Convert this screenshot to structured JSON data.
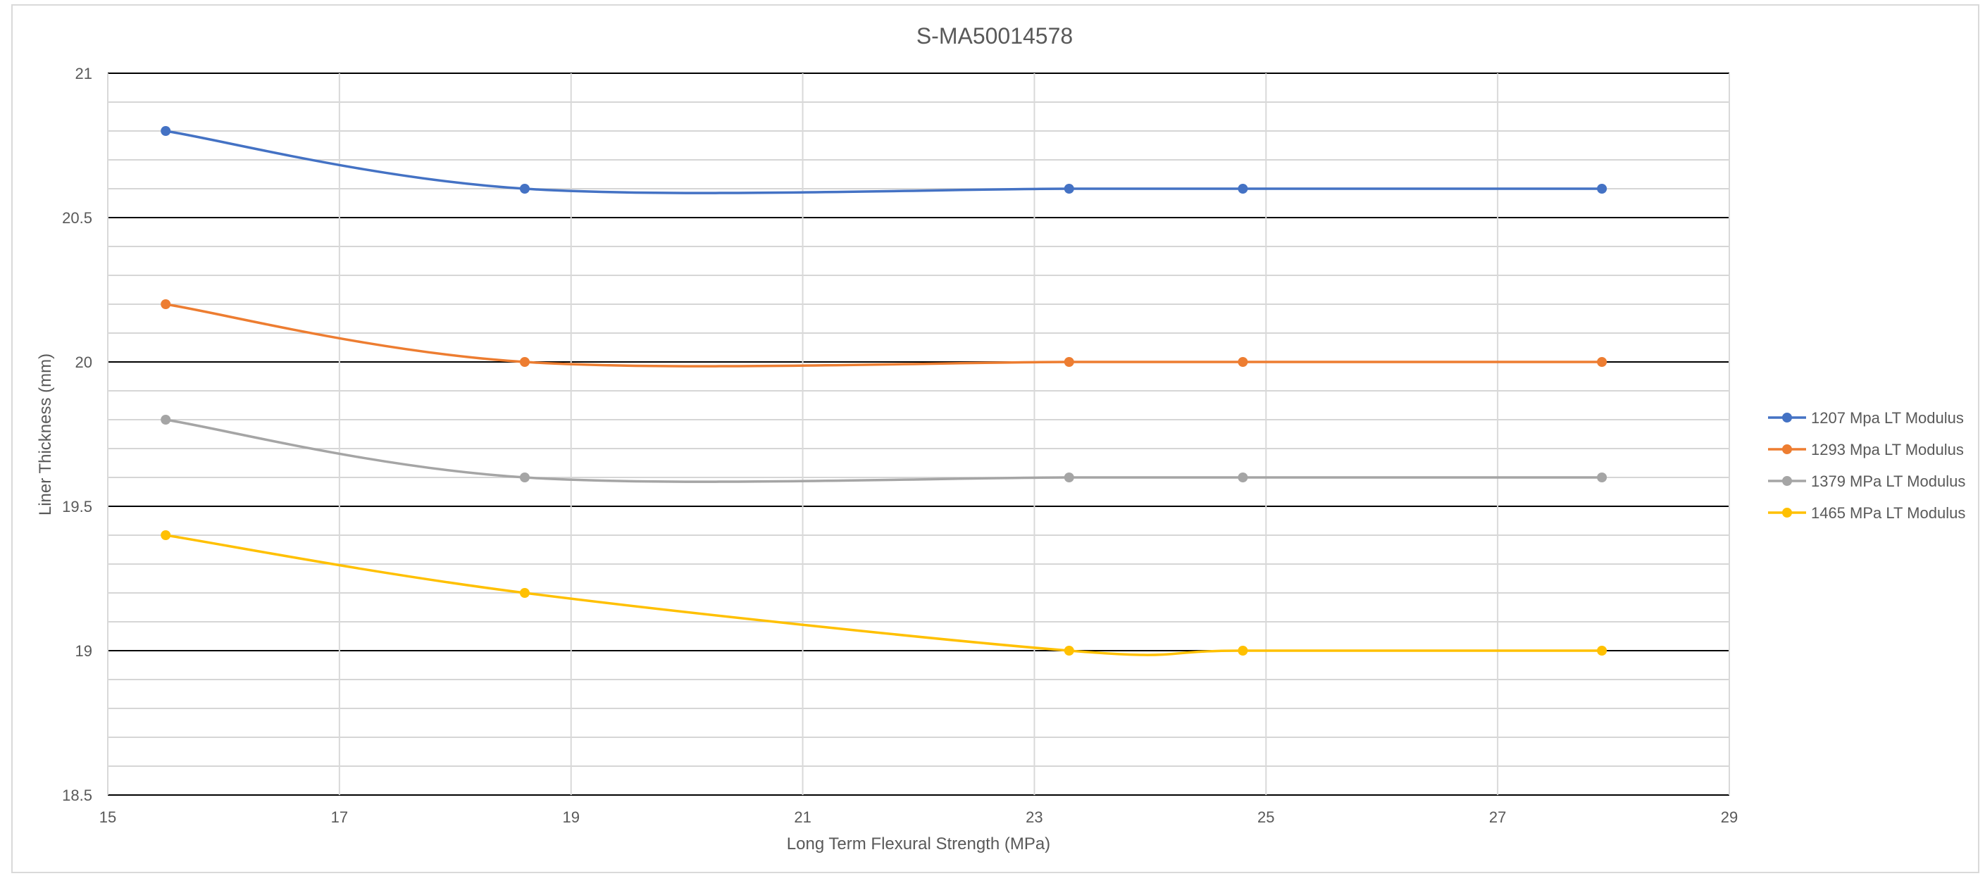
{
  "chart_data": {
    "type": "line",
    "title": "S-MA50014578",
    "xlabel": "Long Term Flexural Strength (MPa)",
    "ylabel": "Liner Thickness (mm)",
    "xlim": [
      15,
      29
    ],
    "ylim": [
      18.5,
      21
    ],
    "x_ticks": [
      "15",
      "17",
      "19",
      "21",
      "23",
      "25",
      "27",
      "29"
    ],
    "y_ticks": [
      "18.5",
      "19",
      "19.5",
      "20",
      "20.5",
      "21"
    ],
    "x_major_step": 2,
    "y_major_step": 0.5,
    "y_minor_step": 0.1,
    "grid": true,
    "smoothed": true,
    "legend_position": "right",
    "series": [
      {
        "name": "1207 Mpa LT Modulus",
        "color": "#4472C4",
        "x": [
          15.5,
          18.6,
          23.3,
          24.8,
          27.9
        ],
        "y": [
          20.8,
          20.6,
          20.6,
          20.6,
          20.6
        ]
      },
      {
        "name": "1293 Mpa LT Modulus",
        "color": "#ED7D31",
        "x": [
          15.5,
          18.6,
          23.3,
          24.8,
          27.9
        ],
        "y": [
          20.2,
          20.0,
          20.0,
          20.0,
          20.0
        ]
      },
      {
        "name": "1379 MPa LT Modulus",
        "color": "#A5A5A5",
        "x": [
          15.5,
          18.6,
          23.3,
          24.8,
          27.9
        ],
        "y": [
          19.8,
          19.6,
          19.6,
          19.6,
          19.6
        ]
      },
      {
        "name": "1465 MPa LT Modulus",
        "color": "#FFC000",
        "x": [
          15.5,
          18.6,
          23.3,
          24.8,
          27.9
        ],
        "y": [
          19.4,
          19.2,
          19.0,
          19.0,
          19.0
        ]
      }
    ]
  }
}
